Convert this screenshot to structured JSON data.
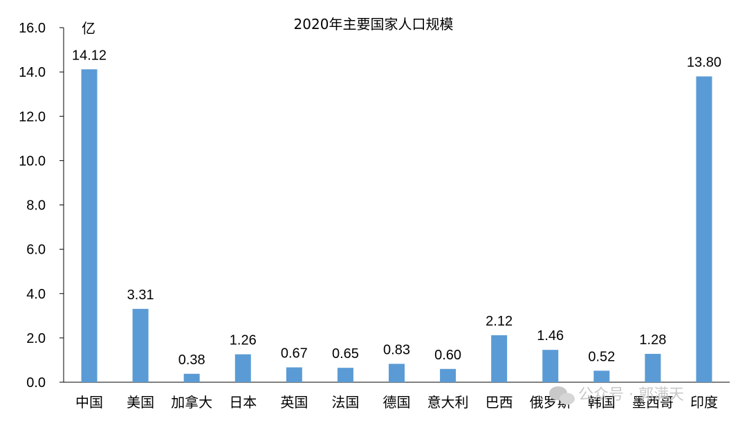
{
  "watermark": "公众号 · 郭满天",
  "chart_data": {
    "type": "bar",
    "title": "2020年主要国家人口规模",
    "unit_label": "亿",
    "categories": [
      "中国",
      "美国",
      "加拿大",
      "日本",
      "英国",
      "法国",
      "德国",
      "意大利",
      "巴西",
      "俄罗斯",
      "韩国",
      "墨西哥",
      "印度"
    ],
    "values": [
      14.12,
      3.31,
      0.38,
      1.26,
      0.67,
      0.65,
      0.83,
      0.6,
      2.12,
      1.46,
      0.52,
      1.28,
      13.8
    ],
    "value_labels": [
      "14.12",
      "3.31",
      "0.38",
      "1.26",
      "0.67",
      "0.65",
      "0.83",
      "0.60",
      "2.12",
      "1.46",
      "0.52",
      "1.28",
      "13.80"
    ],
    "yticks": [
      "0.0",
      "2.0",
      "4.0",
      "6.0",
      "8.0",
      "10.0",
      "12.0",
      "14.0",
      "16.0"
    ],
    "ylim": [
      0,
      16
    ],
    "bar_color": "#5B9BD5",
    "grid": false,
    "legend": "none"
  }
}
